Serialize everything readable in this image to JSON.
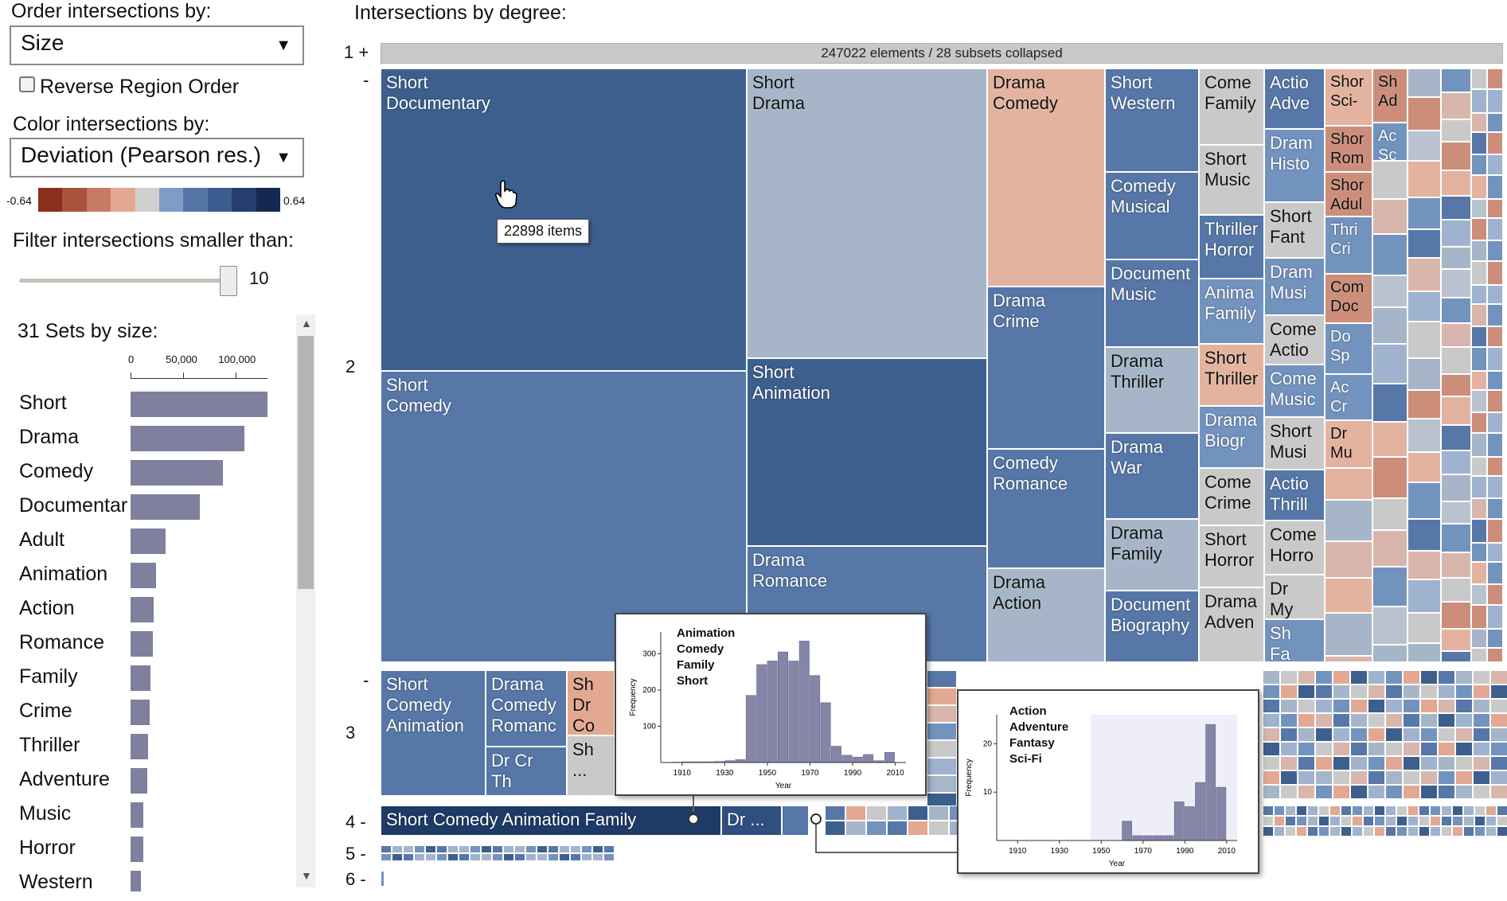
{
  "controls": {
    "order_label": "Order intersections by:",
    "order_value": "Size",
    "reverse_label": "Reverse Region Order",
    "color_label": "Color intersections by:",
    "color_value": "Deviation (Pearson res.)",
    "legend_min": "-0.64",
    "legend_max": "0.64",
    "legend_colors": [
      "#8b2e1e",
      "#a8523c",
      "#c77a65",
      "#e3a892",
      "#d0d0d0",
      "#7e9cc6",
      "#5577a8",
      "#3b5c8f",
      "#243f6f",
      "#15284f"
    ],
    "filter_label": "Filter intersections smaller than:",
    "filter_value": "10"
  },
  "sets": {
    "header": "31 Sets by size:",
    "axis_ticks": [
      "0",
      "50,000",
      "100,000"
    ],
    "items": [
      {
        "name": "Short",
        "size": 130000
      },
      {
        "name": "Drama",
        "size": 108000
      },
      {
        "name": "Comedy",
        "size": 88000
      },
      {
        "name": "Documentar",
        "size": 66000
      },
      {
        "name": "Adult",
        "size": 33000
      },
      {
        "name": "Animation",
        "size": 24000
      },
      {
        "name": "Action",
        "size": 22000
      },
      {
        "name": "Romance",
        "size": 21000
      },
      {
        "name": "Family",
        "size": 19000
      },
      {
        "name": "Crime",
        "size": 18500
      },
      {
        "name": "Thriller",
        "size": 17000
      },
      {
        "name": "Adventure",
        "size": 15500
      },
      {
        "name": "Music",
        "size": 12000
      },
      {
        "name": "Horror",
        "size": 12000
      },
      {
        "name": "Western",
        "size": 10000
      }
    ]
  },
  "main": {
    "title": "Intersections by degree:",
    "degree_labels": {
      "d1": "1 +",
      "d2_minus": "-",
      "d2": "2",
      "d3_minus": "-",
      "d3": "3",
      "d4": "4 -",
      "d5": "5 -",
      "d6": "6 -"
    },
    "collapsed_text": "247022 elements / 28 subsets collapsed",
    "tooltip": "22898 items",
    "degree2_tiles": [
      {
        "label": "Short\nDocumentary"
      },
      {
        "label": "Short\nComedy"
      },
      {
        "label": "Short\nDrama"
      },
      {
        "label": "Short\nAnimation"
      },
      {
        "label": "Drama\nRomance"
      },
      {
        "label": "Drama\nComedy"
      },
      {
        "label": "Drama\nCrime"
      },
      {
        "label": "Comedy\nRomance"
      },
      {
        "label": "Drama\nAction"
      },
      {
        "label": "Short\nWestern"
      },
      {
        "label": "Comedy\nMusical"
      },
      {
        "label": "Document\nMusic"
      },
      {
        "label": "Drama\nThriller"
      },
      {
        "label": "Drama\nWar"
      },
      {
        "label": "Drama\nFamily"
      },
      {
        "label": "Document\nBiography"
      },
      {
        "label": "Come\nFamily"
      },
      {
        "label": "Short\nMusic"
      },
      {
        "label": "Thriller\nHorror"
      },
      {
        "label": "Anima\nFamily"
      },
      {
        "label": "Short\nThriller"
      },
      {
        "label": "Drama\nBiogr"
      },
      {
        "label": "Come\nCrime"
      },
      {
        "label": "Short\nHorror"
      },
      {
        "label": "Drama\nAdven"
      },
      {
        "label": "Actio\nAdve"
      },
      {
        "label": "Dram\nHisto"
      },
      {
        "label": "Short\nFant"
      },
      {
        "label": "Dram\nMusi"
      },
      {
        "label": "Come\nActio"
      },
      {
        "label": "Come\nMusic"
      },
      {
        "label": "Short\nMusi"
      },
      {
        "label": "Actio\nThrill"
      },
      {
        "label": "Come\nHorro"
      },
      {
        "label": "Dr\nMy"
      },
      {
        "label": "Sh\nFa"
      },
      {
        "label": "Shor\nSci-"
      },
      {
        "label": "Shor\nRom"
      },
      {
        "label": "Shor\nAdul"
      },
      {
        "label": "Thri\nCri"
      },
      {
        "label": "Com\nDoc"
      },
      {
        "label": "Do\nSp"
      },
      {
        "label": "Ac\nCr"
      },
      {
        "label": "Dr\nMu"
      },
      {
        "label": "Sh\nAd"
      },
      {
        "label": "Ac\nSc"
      }
    ],
    "degree3_tiles": [
      {
        "label": "Short\nComedy\nAnimation"
      },
      {
        "label": "Drama\nComedy\nRomanc"
      },
      {
        "label": "Dr Cr\nTh"
      },
      {
        "label": "Sh\nDr\nCo"
      },
      {
        "label": "Sh\n..."
      }
    ],
    "degree4_tiles": [
      {
        "label": "Short Comedy Animation Family"
      },
      {
        "label": "Dr ..."
      }
    ]
  },
  "popup1": {
    "title": "Animation\nComedy\nFamily\nShort",
    "ylabel": "Frequency",
    "xlabel": "Year",
    "x_ticks": [
      "1910",
      "1930",
      "1950",
      "1970",
      "1990",
      "2010"
    ],
    "y_ticks": [
      "100",
      "200",
      "300"
    ],
    "chart_data": {
      "type": "bar",
      "x": [
        1905,
        1910,
        1915,
        1920,
        1925,
        1930,
        1935,
        1940,
        1945,
        1950,
        1955,
        1960,
        1965,
        1970,
        1975,
        1980,
        1985,
        1990,
        1995,
        2000,
        2005
      ],
      "values": [
        1,
        2,
        2,
        2,
        3,
        5,
        8,
        185,
        270,
        280,
        305,
        280,
        335,
        240,
        165,
        45,
        20,
        15,
        22,
        5,
        28
      ],
      "ylim": [
        0,
        360
      ]
    }
  },
  "popup2": {
    "title": "Action\nAdventure\nFantasy\nSci-Fi",
    "ylabel": "Frequency",
    "xlabel": "Year",
    "x_ticks": [
      "1910",
      "1930",
      "1950",
      "1970",
      "1990",
      "2010"
    ],
    "y_ticks": [
      "10",
      "20"
    ],
    "chart_data": {
      "type": "bar",
      "x": [
        1955,
        1960,
        1965,
        1970,
        1975,
        1980,
        1985,
        1990,
        1995,
        2000,
        2005
      ],
      "values": [
        0,
        4,
        1,
        1,
        1,
        1,
        8,
        7,
        12,
        24,
        11
      ],
      "ylim": [
        0,
        26
      ]
    }
  }
}
